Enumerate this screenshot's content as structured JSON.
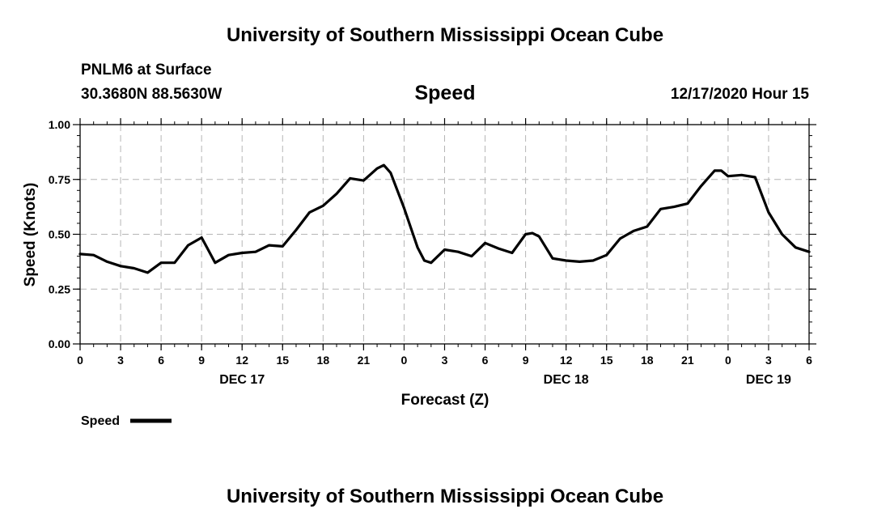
{
  "header": {
    "title": "University of Southern Mississippi Ocean Cube",
    "station": "PNLM6 at Surface",
    "coords": "30.3680N 88.5630W",
    "variable": "Speed",
    "timestamp": "12/17/2020 Hour 15"
  },
  "footer": {
    "title": "University of Southern Mississippi Ocean Cube"
  },
  "chart_data": {
    "type": "line",
    "title": "Speed",
    "xlabel": "Forecast (Z)",
    "ylabel": "Speed (Knots)",
    "ylim": [
      0,
      1
    ],
    "xlim": [
      0,
      54
    ],
    "grid": true,
    "x_ticks": [
      {
        "hour": 0,
        "label": "0"
      },
      {
        "hour": 3,
        "label": "3"
      },
      {
        "hour": 6,
        "label": "6"
      },
      {
        "hour": 9,
        "label": "9"
      },
      {
        "hour": 12,
        "label": "12"
      },
      {
        "hour": 15,
        "label": "15"
      },
      {
        "hour": 18,
        "label": "18"
      },
      {
        "hour": 21,
        "label": "21"
      },
      {
        "hour": 24,
        "label": "0"
      },
      {
        "hour": 27,
        "label": "3"
      },
      {
        "hour": 30,
        "label": "6"
      },
      {
        "hour": 33,
        "label": "9"
      },
      {
        "hour": 36,
        "label": "12"
      },
      {
        "hour": 39,
        "label": "15"
      },
      {
        "hour": 42,
        "label": "18"
      },
      {
        "hour": 45,
        "label": "21"
      },
      {
        "hour": 48,
        "label": "0"
      },
      {
        "hour": 51,
        "label": "3"
      },
      {
        "hour": 54,
        "label": "6"
      }
    ],
    "y_ticks": [
      {
        "value": 0,
        "label": "0.00"
      },
      {
        "value": 0.25,
        "label": "0.25"
      },
      {
        "value": 0.5,
        "label": "0.50"
      },
      {
        "value": 0.75,
        "label": "0.75"
      },
      {
        "value": 1.0,
        "label": "1.00"
      }
    ],
    "date_labels": [
      {
        "hour": 12,
        "label": "DEC 17"
      },
      {
        "hour": 36,
        "label": "DEC 18"
      },
      {
        "hour": 51,
        "label": "DEC 19"
      }
    ],
    "legend": {
      "label": "Speed",
      "position": "bottom-left"
    },
    "series": [
      {
        "name": "Speed",
        "color": "#000000",
        "points": [
          [
            0,
            0.41
          ],
          [
            1,
            0.405
          ],
          [
            2,
            0.375
          ],
          [
            3,
            0.355
          ],
          [
            4,
            0.345
          ],
          [
            5,
            0.325
          ],
          [
            6,
            0.37
          ],
          [
            7,
            0.37
          ],
          [
            8,
            0.45
          ],
          [
            9,
            0.485
          ],
          [
            10,
            0.37
          ],
          [
            11,
            0.405
          ],
          [
            12,
            0.415
          ],
          [
            13,
            0.42
          ],
          [
            14,
            0.45
          ],
          [
            15,
            0.445
          ],
          [
            16,
            0.52
          ],
          [
            17,
            0.6
          ],
          [
            18,
            0.63
          ],
          [
            19,
            0.685
          ],
          [
            20,
            0.755
          ],
          [
            21,
            0.745
          ],
          [
            22,
            0.8
          ],
          [
            22.5,
            0.815
          ],
          [
            23,
            0.78
          ],
          [
            24,
            0.62
          ],
          [
            25,
            0.44
          ],
          [
            25.5,
            0.38
          ],
          [
            26,
            0.37
          ],
          [
            27,
            0.43
          ],
          [
            28,
            0.42
          ],
          [
            29,
            0.4
          ],
          [
            30,
            0.46
          ],
          [
            31,
            0.435
          ],
          [
            32,
            0.415
          ],
          [
            33,
            0.5
          ],
          [
            33.5,
            0.505
          ],
          [
            34,
            0.49
          ],
          [
            35,
            0.39
          ],
          [
            36,
            0.38
          ],
          [
            37,
            0.375
          ],
          [
            38,
            0.38
          ],
          [
            39,
            0.405
          ],
          [
            40,
            0.48
          ],
          [
            41,
            0.515
          ],
          [
            42,
            0.535
          ],
          [
            43,
            0.615
          ],
          [
            44,
            0.625
          ],
          [
            45,
            0.64
          ],
          [
            46,
            0.72
          ],
          [
            47,
            0.79
          ],
          [
            47.5,
            0.79
          ],
          [
            48,
            0.765
          ],
          [
            49,
            0.77
          ],
          [
            50,
            0.76
          ],
          [
            51,
            0.6
          ],
          [
            52,
            0.5
          ],
          [
            53,
            0.44
          ],
          [
            54,
            0.42
          ]
        ]
      }
    ]
  }
}
